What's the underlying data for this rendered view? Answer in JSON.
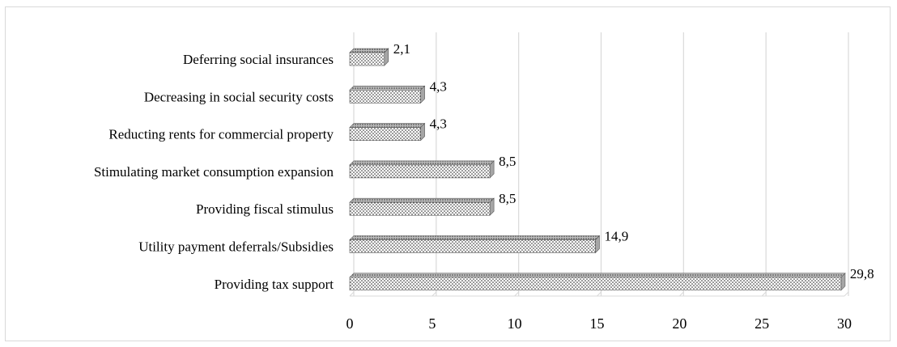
{
  "chart_data": {
    "type": "bar",
    "orientation": "horizontal",
    "title": "",
    "xlabel": "",
    "ylabel": "",
    "categories": [
      "Deferring social insurances",
      "Decreasing in social security costs",
      "Reducting rents for commercial property",
      "Stimulating market consumption expansion",
      "Providing fiscal stimulus",
      "Utility payment deferrals/Subsidies",
      "Providing tax support"
    ],
    "values": [
      2.1,
      4.3,
      4.3,
      8.5,
      8.5,
      14.9,
      29.8
    ],
    "value_labels": [
      "2,1",
      "4,3",
      "4,3",
      "8,5",
      "8,5",
      "14,9",
      "29,8"
    ],
    "xlim": [
      0,
      30
    ],
    "x_ticks": [
      "0",
      "5",
      "10",
      "15",
      "20",
      "25",
      "30"
    ],
    "grid": true,
    "legend": "none",
    "bar_style": "3d-dotted"
  }
}
